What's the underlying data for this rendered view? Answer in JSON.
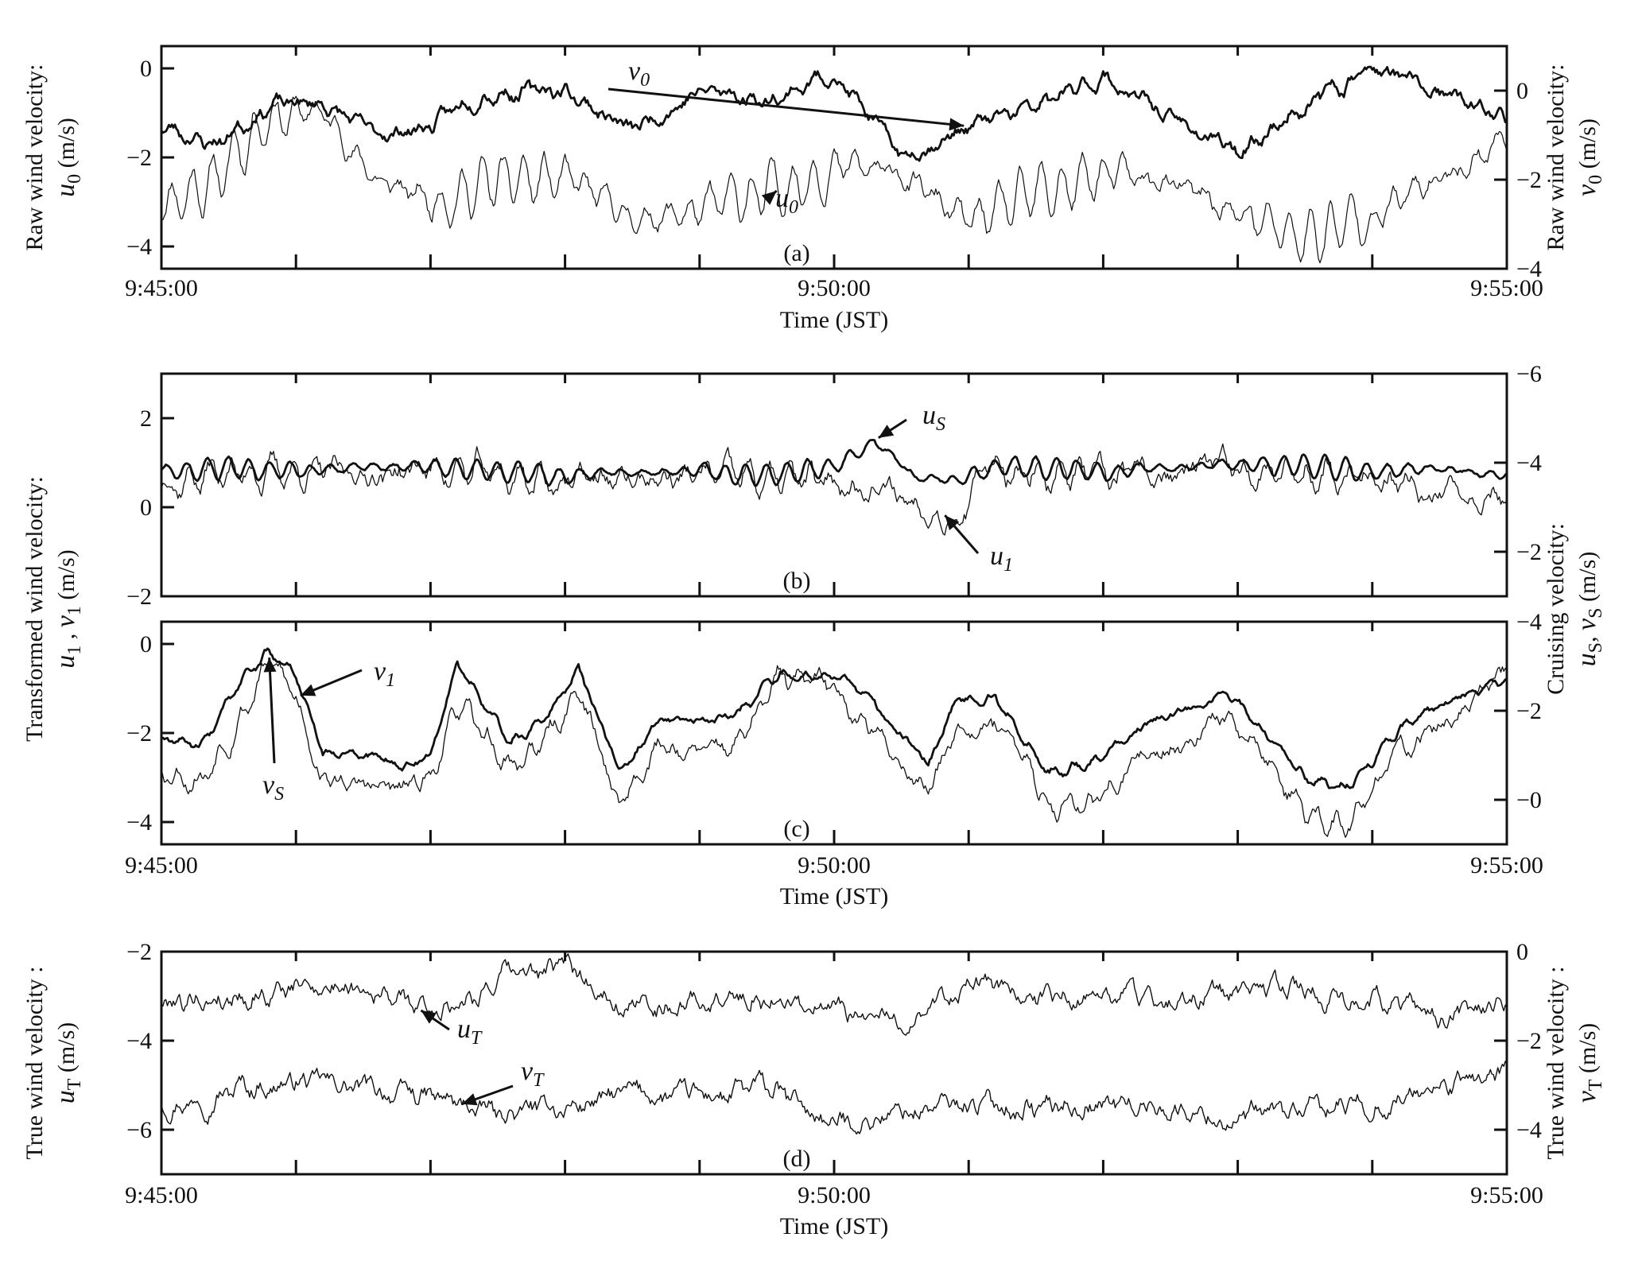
{
  "chart_data": [
    {
      "panel": "a",
      "type": "line",
      "panel_label": "(a)",
      "xlabel": "Time (JST)",
      "x_range": [
        "9:45:00",
        "9:55:00"
      ],
      "x_tick_labels": [
        "9:45:00",
        "9:50:00",
        "9:55:00"
      ],
      "y_left": {
        "label_line1": "Raw wind velocity:",
        "label_var": "u",
        "label_sub": "0",
        "label_unit": " (m/s)",
        "range": [
          -4.5,
          0.5
        ],
        "ticks": [
          0,
          -2,
          -4
        ],
        "tick_labels": [
          "0",
          "−2",
          "−4"
        ]
      },
      "y_right": {
        "label_line1": "Raw wind velocity:",
        "label_var": "v",
        "label_sub": "0",
        "label_unit": " (m/s)",
        "range": [
          -4,
          1
        ],
        "ticks": [
          0,
          -2,
          -4
        ],
        "tick_labels": [
          "0",
          "−2",
          "−4"
        ]
      },
      "series": [
        {
          "name": "u0",
          "label_var": "u",
          "label_sub": "0",
          "axis": "left",
          "weight": "thin",
          "x_min": [
            0,
            0.4,
            0.8,
            1.2,
            1.6,
            2.0,
            2.4,
            3.0,
            3.5,
            4.0,
            4.5,
            5.0,
            5.5,
            6.0,
            6.5,
            7.0,
            7.5,
            8.0,
            8.5,
            9.0,
            9.5,
            10.0
          ],
          "values": [
            -3.0,
            -2.5,
            -1.0,
            -1.0,
            -2.5,
            -3.0,
            -2.6,
            -2.5,
            -3.4,
            -3.2,
            -2.8,
            -2.2,
            -2.4,
            -3.5,
            -2.9,
            -2.4,
            -2.6,
            -3.3,
            -3.8,
            -3.3,
            -2.5,
            -1.5
          ],
          "oscillation": 0.55,
          "noise": 0.25,
          "seed": 11
        },
        {
          "name": "v0",
          "label_var": "v",
          "label_sub": "0",
          "axis": "right",
          "weight": "thick",
          "x_min": [
            0,
            0.4,
            0.8,
            1.2,
            1.6,
            2.0,
            2.4,
            3.0,
            3.5,
            4.0,
            4.5,
            5.0,
            5.5,
            6.0,
            6.5,
            7.0,
            7.5,
            8.0,
            8.5,
            9.0,
            9.5,
            10.0
          ],
          "values": [
            -0.8,
            -1.2,
            -0.3,
            -0.3,
            -1.0,
            -0.8,
            0.0,
            0.0,
            -0.9,
            0.0,
            -0.2,
            0.4,
            -1.5,
            -0.8,
            -0.4,
            0.3,
            -0.6,
            -1.4,
            -0.3,
            0.5,
            -0.1,
            -0.6
          ],
          "oscillation": 0.1,
          "noise": 0.2,
          "seed": 23
        }
      ],
      "annotations": [
        {
          "label_var": "v",
          "label_sub": "0",
          "target": [
            "x_min",
            6.0
          ],
          "series": "v0"
        },
        {
          "label_var": "u",
          "label_sub": "0",
          "target": [
            "x_min",
            4.6
          ],
          "series": "u0"
        }
      ]
    },
    {
      "panel": "b",
      "type": "line",
      "panel_label": "(b)",
      "x_range": [
        "9:45:00",
        "9:55:00"
      ],
      "y_left": {
        "range": [
          -2,
          3
        ],
        "ticks": [
          2,
          0,
          -2
        ],
        "tick_labels": [
          "2",
          "0",
          "−2"
        ]
      },
      "y_right": {
        "range": [
          -1,
          -6
        ],
        "ticks": [
          -6,
          -4,
          -2
        ],
        "tick_labels": [
          "−6",
          "−4",
          "−2"
        ]
      },
      "series": [
        {
          "name": "u1",
          "label_var": "u",
          "label_sub": "1",
          "axis": "left",
          "weight": "thin",
          "x_min": [
            0,
            0.5,
            1.0,
            1.5,
            2.0,
            2.5,
            3.0,
            3.5,
            4.0,
            4.5,
            5.0,
            5.3,
            5.6,
            5.9,
            6.2,
            6.5,
            7.0,
            7.5,
            8.0,
            8.5,
            9.0,
            9.5,
            10.0
          ],
          "values": [
            0.6,
            0.8,
            0.8,
            0.7,
            0.9,
            0.7,
            0.6,
            0.6,
            0.7,
            0.6,
            0.5,
            0.5,
            0.1,
            -0.2,
            1.0,
            0.8,
            0.6,
            0.7,
            0.9,
            0.8,
            0.5,
            0.3,
            0.3
          ],
          "oscillation": 0.3,
          "noise": 0.3,
          "seed": 37
        },
        {
          "name": "uS",
          "label_var": "u",
          "label_sub": "S",
          "axis": "right",
          "weight": "thick",
          "x_min": [
            0,
            0.5,
            1.0,
            1.5,
            2.0,
            2.5,
            3.0,
            3.5,
            4.0,
            4.5,
            5.0,
            5.3,
            5.6,
            5.9,
            6.2,
            6.5,
            7.0,
            7.5,
            8.0,
            8.5,
            9.0,
            9.5,
            10.0
          ],
          "values": [
            -3.8,
            -3.9,
            -3.8,
            -3.9,
            -3.9,
            -3.8,
            -3.7,
            -3.8,
            -3.8,
            -3.7,
            -3.9,
            -4.5,
            -3.7,
            -3.6,
            -3.9,
            -3.9,
            -3.8,
            -3.9,
            -4.0,
            -3.9,
            -3.8,
            -3.9,
            -3.7
          ],
          "oscillation": 0.25,
          "noise": 0.05,
          "seed": 41
        }
      ],
      "annotations": [
        {
          "label_var": "u",
          "label_sub": "S",
          "target": [
            "x_min",
            5.3
          ],
          "series": "uS"
        },
        {
          "label_var": "u",
          "label_sub": "1",
          "target": [
            "x_min",
            5.8
          ],
          "series": "u1"
        }
      ]
    },
    {
      "panel": "c",
      "type": "line",
      "panel_label": "(c)",
      "xlabel": "Time (JST)",
      "x_range": [
        "9:45:00",
        "9:55:00"
      ],
      "x_tick_labels": [
        "9:45:00",
        "9:50:00",
        "9:55:00"
      ],
      "y_left": {
        "range": [
          -4.5,
          0.5
        ],
        "ticks": [
          0,
          -2,
          -4
        ],
        "tick_labels": [
          "0",
          "−2",
          "−4"
        ]
      },
      "y_right": {
        "range": [
          1,
          -4
        ],
        "ticks": [
          -4,
          -2,
          0
        ],
        "tick_labels": [
          "−4",
          "−2",
          "−0"
        ]
      },
      "shared_left_label": {
        "line1": "Transformed wind velocity:",
        "line2_parts": [
          "u",
          "1",
          " , ",
          "v",
          "1",
          "  (m/s)"
        ]
      },
      "shared_right_label": {
        "line1": "Cruising velocity:",
        "line2_parts": [
          "u",
          "S",
          ", ",
          "v",
          "S",
          "  (m/s)"
        ]
      },
      "series": [
        {
          "name": "v1",
          "label_var": "v",
          "label_sub": "1",
          "axis": "left",
          "weight": "thin",
          "x_min": [
            0,
            0.3,
            0.6,
            0.8,
            1.0,
            1.2,
            1.5,
            1.8,
            2.0,
            2.2,
            2.6,
            2.9,
            3.1,
            3.4,
            3.7,
            4.0,
            4.3,
            4.6,
            5.0,
            5.3,
            5.7,
            5.9,
            6.2,
            6.6,
            7.0,
            7.3,
            7.6,
            7.9,
            8.2,
            8.5,
            8.8,
            9.2,
            9.6,
            10.0
          ],
          "values": [
            -2.8,
            -3.0,
            -1.5,
            -0.4,
            -1.2,
            -3.0,
            -3.2,
            -3.3,
            -3.0,
            -1.4,
            -2.8,
            -2.0,
            -1.0,
            -3.6,
            -2.2,
            -2.5,
            -2.2,
            -0.8,
            -1.0,
            -2.0,
            -3.3,
            -1.8,
            -1.6,
            -3.6,
            -3.4,
            -2.5,
            -2.2,
            -1.6,
            -2.5,
            -3.8,
            -4.2,
            -2.4,
            -1.7,
            -0.7
          ],
          "oscillation": 0.2,
          "noise": 0.25,
          "seed": 53
        },
        {
          "name": "vS",
          "label_var": "v",
          "label_sub": "S",
          "axis": "right",
          "weight": "thick",
          "x_min": [
            0,
            0.3,
            0.6,
            0.8,
            1.0,
            1.2,
            1.5,
            1.8,
            2.0,
            2.2,
            2.6,
            2.9,
            3.1,
            3.4,
            3.7,
            4.0,
            4.3,
            4.6,
            5.0,
            5.3,
            5.7,
            5.9,
            6.2,
            6.6,
            7.0,
            7.3,
            7.6,
            7.9,
            8.2,
            8.5,
            8.8,
            9.2,
            9.6,
            10.0
          ],
          "values": [
            -1.3,
            -1.2,
            -2.6,
            -3.3,
            -2.9,
            -1.1,
            -1.0,
            -0.8,
            -1.0,
            -3.0,
            -1.3,
            -2.0,
            -3.0,
            -0.6,
            -1.8,
            -1.7,
            -1.9,
            -2.8,
            -2.8,
            -2.1,
            -0.8,
            -2.2,
            -2.3,
            -0.6,
            -0.9,
            -1.7,
            -2.0,
            -2.5,
            -1.6,
            -0.5,
            -0.3,
            -1.6,
            -2.2,
            -2.6
          ],
          "oscillation": 0.1,
          "noise": 0.1,
          "seed": 67
        }
      ],
      "annotations": [
        {
          "label_var": "v",
          "label_sub": "1",
          "target": [
            "x_min",
            1.0
          ],
          "series": "v1"
        },
        {
          "label_var": "v",
          "label_sub": "S",
          "target": [
            "x_min",
            0.8
          ],
          "series": "vS"
        }
      ]
    },
    {
      "panel": "d",
      "type": "line",
      "panel_label": "(d)",
      "xlabel": "Time (JST)",
      "x_range": [
        "9:45:00",
        "9:55:00"
      ],
      "x_tick_labels": [
        "9:45:00",
        "9:50:00",
        "9:55:00"
      ],
      "y_left": {
        "label_line1": "True wind velocity :",
        "label_var": "u",
        "label_sub": "T",
        "label_unit": " (m/s)",
        "range": [
          -7,
          -2
        ],
        "ticks": [
          -2,
          -4,
          -6
        ],
        "tick_labels": [
          "−2",
          "−4",
          "−6"
        ]
      },
      "y_right": {
        "label_line1": "True wind velocity :",
        "label_var": "v",
        "label_sub": "T",
        "label_unit": " (m/s)",
        "range": [
          -5,
          0
        ],
        "ticks": [
          0,
          -2,
          -4
        ],
        "tick_labels": [
          "0",
          "−2",
          "−4"
        ]
      },
      "series": [
        {
          "name": "uT",
          "label_var": "u",
          "label_sub": "T",
          "axis": "left",
          "weight": "thin",
          "x_min": [
            0,
            0.5,
            1.0,
            1.5,
            2.0,
            2.5,
            3.0,
            3.5,
            4.0,
            4.5,
            5.0,
            5.5,
            6.0,
            6.5,
            7.0,
            7.5,
            8.0,
            8.5,
            9.0,
            9.5,
            10.0
          ],
          "values": [
            -3.1,
            -3.0,
            -2.8,
            -2.7,
            -3.4,
            -2.6,
            -2.4,
            -3.2,
            -3.1,
            -3.0,
            -3.4,
            -3.6,
            -2.7,
            -3.1,
            -3.0,
            -3.1,
            -3.0,
            -2.9,
            -3.0,
            -3.5,
            -3.2
          ],
          "oscillation": 0.1,
          "noise": 0.3,
          "seed": 79
        },
        {
          "name": "vT",
          "label_var": "v",
          "label_sub": "T",
          "axis": "right",
          "weight": "thin",
          "x_min": [
            0,
            0.5,
            1.0,
            1.5,
            2.0,
            2.5,
            3.0,
            3.5,
            4.0,
            4.5,
            5.0,
            5.5,
            6.0,
            6.5,
            7.0,
            7.5,
            8.0,
            8.5,
            9.0,
            9.5,
            10.0
          ],
          "values": [
            -3.4,
            -3.1,
            -2.9,
            -3.1,
            -3.3,
            -3.7,
            -3.5,
            -3.2,
            -3.3,
            -3.1,
            -3.9,
            -3.6,
            -3.4,
            -3.5,
            -3.4,
            -3.5,
            -3.8,
            -3.6,
            -3.4,
            -3.1,
            -2.7
          ],
          "oscillation": 0.1,
          "noise": 0.3,
          "seed": 97
        }
      ],
      "annotations": [
        {
          "label_var": "u",
          "label_sub": "T",
          "target": [
            "x_min",
            1.9
          ],
          "series": "uT"
        },
        {
          "label_var": "v",
          "label_sub": "T",
          "target": [
            "x_min",
            2.2
          ],
          "series": "vT"
        }
      ]
    }
  ]
}
